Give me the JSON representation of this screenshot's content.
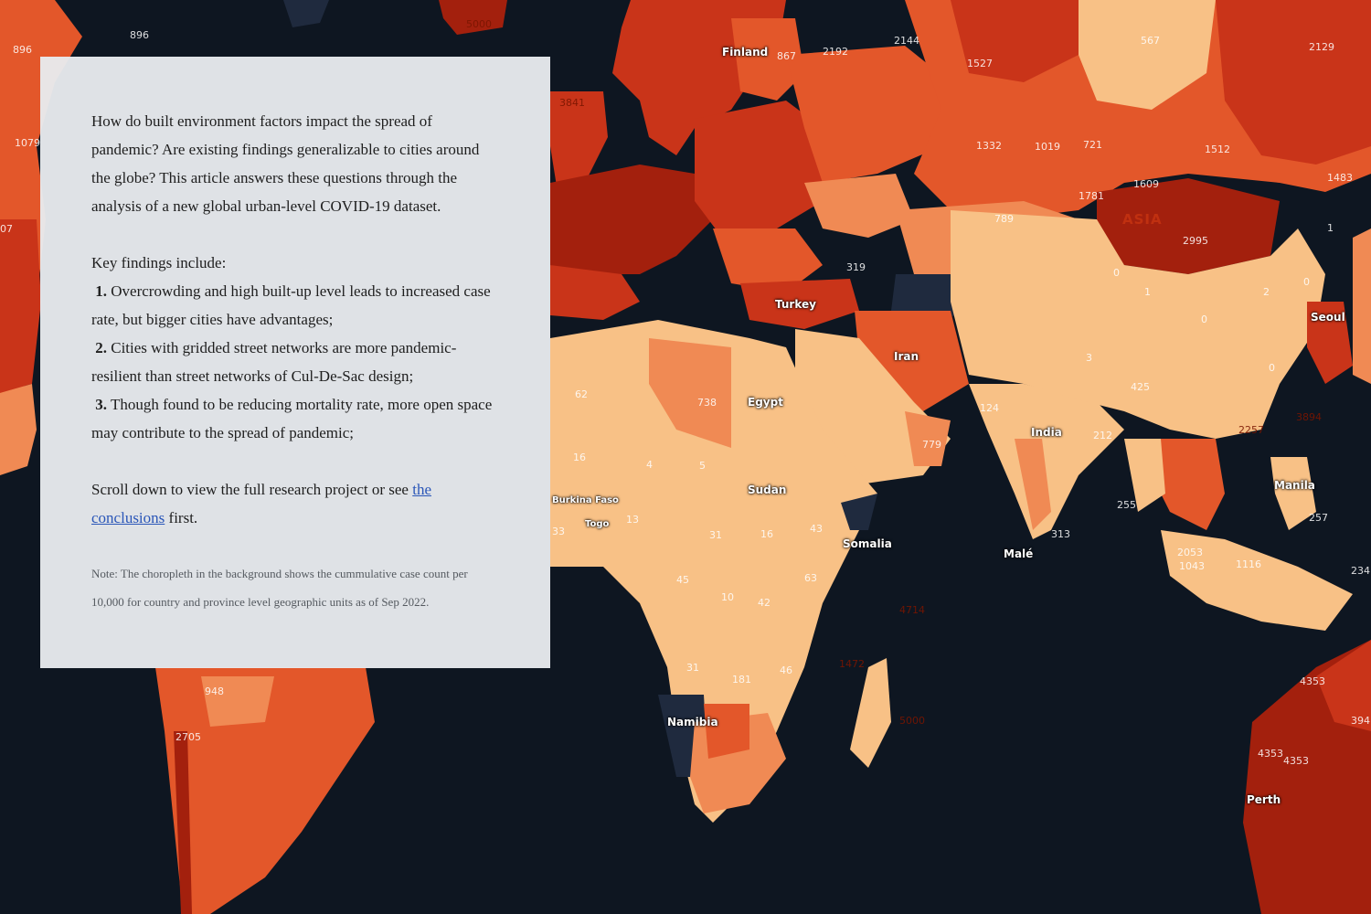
{
  "colors": {
    "ocean": "#0e1621",
    "no_data": "#1f2a3e",
    "bin_lowest": "#f8c186",
    "bin_low": "#f08a54",
    "bin_mid": "#e3572a",
    "bin_high": "#c93419",
    "bin_highest": "#a3200d",
    "panel_bg": "#e8ebee",
    "link": "#2a56b8"
  },
  "intro": {
    "question": "How do built environment factors impact the spread of pandemic? Are existing findings generalizable to cities around the globe? This article answers these questions through the analysis of a new global urban-level COVID-19 dataset.",
    "findings_heading": "Key findings include:",
    "findings": [
      {
        "num": "1.",
        "text": "Overcrowding and high built-up level leads to increased case rate, but bigger cities have advantages;"
      },
      {
        "num": "2.",
        "text": "Cities with gridded street networks are more pandemic-resilient than street networks of Cul-De-Sac design;"
      },
      {
        "num": "3.",
        "text": "Though found to be reducing mortality rate, more open space may contribute to the spread of pandemic;"
      }
    ],
    "scroll_before": "Scroll down to view the full research project or see",
    "scroll_link": "the conclusions",
    "scroll_after": "first.",
    "note": "Note: The choropleth in the background shows the cummulative case count per 10,000 for country and province level geographic units as of Sep 2022."
  },
  "map": {
    "place_labels": [
      "Finland",
      "Turkey",
      "Egypt",
      "Iran",
      "India",
      "Sudan",
      "Burkina Faso",
      "Togo",
      "Somalia",
      "Malé",
      "Namibia",
      "Seoul",
      "Manila",
      "Perth"
    ],
    "region_labels": [
      "ASIA"
    ],
    "value_labels": [
      "896",
      "896",
      "5000",
      "1079",
      "07",
      "867",
      "2192",
      "2144",
      "1527",
      "567",
      "2129",
      "1332",
      "1019",
      "721",
      "1512",
      "1781",
      "1609",
      "1483",
      "789",
      "2995",
      "1",
      "0",
      "1",
      "2",
      "0",
      "0",
      "3",
      "0",
      "319",
      "3841",
      "738",
      "62",
      "16",
      "4",
      "5",
      "13",
      "33",
      "31",
      "16",
      "43",
      "45",
      "63",
      "10",
      "42",
      "46",
      "181",
      "31",
      "948",
      "2705",
      "124",
      "779",
      "425",
      "212",
      "2257",
      "3894",
      "255",
      "313",
      "1043",
      "1116",
      "2053",
      "257",
      "234",
      "1472",
      "4714",
      "5000",
      "4353",
      "4353",
      "4353",
      "394"
    ]
  }
}
